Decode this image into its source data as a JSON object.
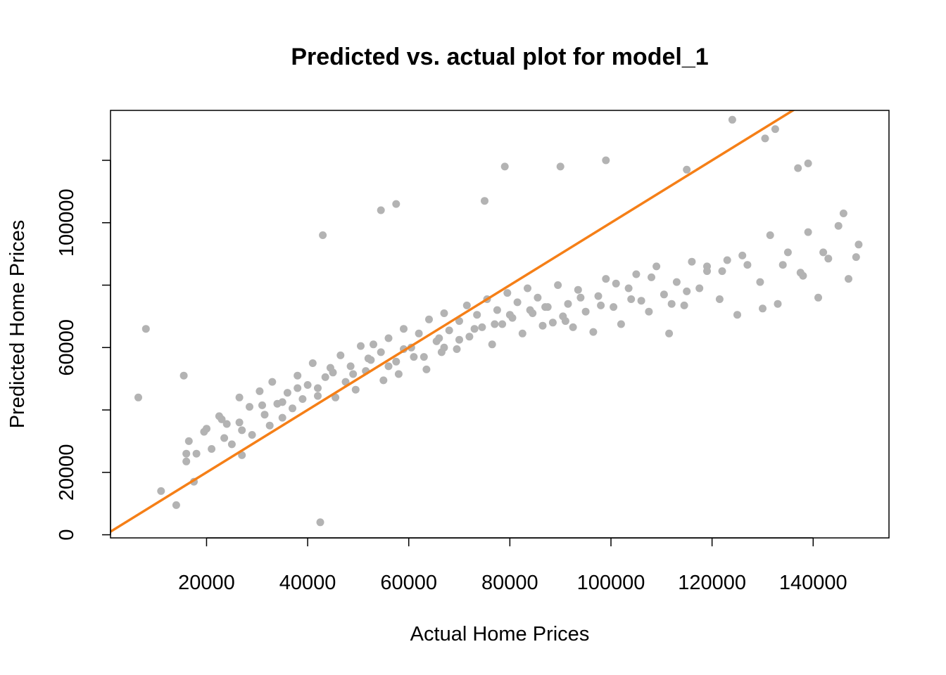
{
  "colors": {
    "points": "#b3b3b3",
    "line": "#f57f17",
    "axis": "#000000"
  },
  "chart_data": {
    "type": "scatter",
    "title": "Predicted vs. actual plot for model_1",
    "xlabel": "Actual Home Prices",
    "ylabel": "Predicted Home Prices",
    "xlim": [
      1000,
      155000
    ],
    "ylim": [
      -1000,
      136000
    ],
    "xticks": [
      20000,
      40000,
      60000,
      80000,
      100000,
      120000,
      140000
    ],
    "xtick_labels": [
      "20000",
      "40000",
      "60000",
      "80000",
      "100000",
      "120000",
      "140000"
    ],
    "yticks": [
      0,
      20000,
      40000,
      60000,
      80000,
      100000,
      120000
    ],
    "ytick_labels": [
      "0",
      "20000",
      "60000",
      "100000"
    ],
    "ytick_labeled_values": [
      0,
      20000,
      60000,
      100000
    ],
    "grid": false,
    "reference_line": {
      "intercept": 0,
      "slope": 1,
      "name": "y = x"
    },
    "series": [
      {
        "x": [
          6500,
          8000,
          11000,
          14000,
          15500,
          16000,
          16500,
          17500,
          18000,
          19500,
          21000,
          22500,
          23500,
          24000,
          25000,
          26500,
          26500,
          27000,
          28500,
          29000,
          30500,
          31500,
          32500,
          33000,
          34000,
          35000,
          36000,
          37000,
          38000,
          39000,
          40000,
          41000,
          42000,
          43500,
          44500,
          45500,
          46500,
          47500,
          48500,
          49500,
          50500,
          51500,
          52500,
          53000,
          54500,
          55000,
          56000,
          57500,
          58000,
          59000,
          60500,
          61000,
          62000,
          63500,
          64000,
          65500,
          66500,
          67000,
          68000,
          69500,
          70000,
          71500,
          72000,
          73500,
          74500,
          75500,
          76500,
          77500,
          78500,
          79500,
          80500,
          81500,
          82500,
          83500,
          84500,
          85500,
          86500,
          87500,
          88500,
          89500,
          90500,
          91500,
          92500,
          93500,
          95000,
          96500,
          97500,
          99000,
          100500,
          102000,
          103500,
          105000,
          106000,
          107500,
          109000,
          110500,
          111500,
          113000,
          114500,
          116000,
          117500,
          119000,
          121500,
          123000,
          125000,
          127000,
          129500,
          131500,
          133000,
          135000,
          137500,
          139000,
          141000,
          143000,
          145000,
          147000,
          149000,
          16000,
          20000,
          23000,
          27000,
          31000,
          35000,
          38000,
          42000,
          45000,
          49000,
          52000,
          56000,
          59000,
          63000,
          66000,
          70000,
          73000,
          77000,
          80000,
          84000,
          87000,
          91000,
          94000,
          98000,
          101000,
          104000,
          108000,
          112000,
          115000,
          119000,
          122000,
          126000,
          130000,
          134000,
          138000,
          142000,
          146000,
          148500,
          54500,
          57500,
          43000,
          79000,
          42500,
          67000,
          75000,
          90000,
          99000,
          115000,
          124000,
          130500,
          132500,
          139000,
          137000
        ],
        "y": [
          44000,
          66000,
          14000,
          9500,
          51000,
          23500,
          30000,
          17000,
          26000,
          33000,
          27500,
          38000,
          31000,
          35500,
          29000,
          44000,
          36000,
          25500,
          41000,
          32000,
          46000,
          38500,
          35000,
          49000,
          42000,
          37500,
          45500,
          40500,
          51000,
          43500,
          48000,
          55000,
          47000,
          50500,
          53500,
          44000,
          57500,
          49000,
          54000,
          46500,
          60500,
          52500,
          56000,
          61000,
          58500,
          49500,
          63000,
          55500,
          51500,
          66000,
          60000,
          57000,
          64500,
          53000,
          69000,
          62000,
          58500,
          71000,
          65500,
          59500,
          68500,
          73500,
          63500,
          70500,
          66500,
          75500,
          61000,
          72000,
          67500,
          77500,
          69500,
          74500,
          64500,
          79000,
          71000,
          76000,
          67000,
          73000,
          68000,
          80000,
          70000,
          74000,
          66500,
          78500,
          71500,
          65000,
          76500,
          82000,
          73000,
          67500,
          79000,
          83500,
          75000,
          71500,
          86000,
          77000,
          64500,
          81000,
          73500,
          87500,
          79000,
          84500,
          75500,
          88000,
          70500,
          86500,
          81000,
          96000,
          74000,
          90500,
          84000,
          97000,
          76000,
          88500,
          99000,
          82000,
          93000,
          26000,
          34000,
          37000,
          33500,
          41500,
          42500,
          47000,
          44500,
          52000,
          51500,
          56500,
          54000,
          59500,
          57000,
          63000,
          62500,
          66000,
          67500,
          70500,
          72000,
          73000,
          68500,
          76000,
          73500,
          80500,
          75500,
          82500,
          74000,
          78000,
          86000,
          84500,
          89500,
          72500,
          86500,
          83000,
          90500,
          103000,
          89000,
          104000,
          106000,
          96000,
          118000,
          4000,
          60000,
          107000,
          118000,
          120000,
          117000,
          133000,
          127000,
          130000,
          119000,
          117500
        ]
      }
    ]
  }
}
